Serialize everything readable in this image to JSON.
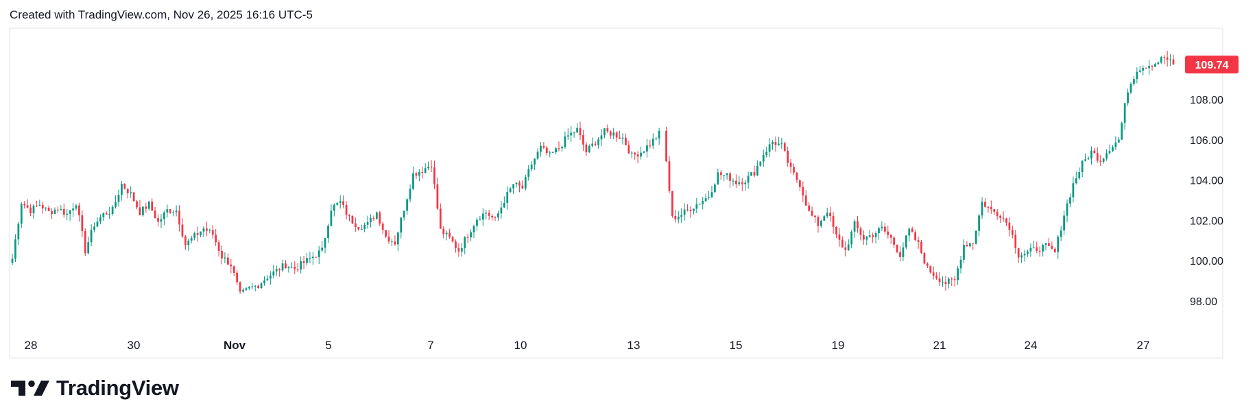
{
  "header": {
    "text": "Created with TradingView.com, Nov 26, 2025 16:16 UTC-5"
  },
  "brand": {
    "name": "TradingView",
    "logo_icon": "tradingview-logo-icon"
  },
  "colors": {
    "up": "#089981",
    "down": "#f23645",
    "text": "#131722",
    "frame": "#e0e3eb"
  },
  "chart_data": {
    "type": "candlestick",
    "title": "",
    "ylim": [
      96.8,
      110.8
    ],
    "y_ticks": [
      98.0,
      100.0,
      102.0,
      104.0,
      106.0,
      108.0
    ],
    "y_tick_labels": [
      "98.00",
      "100.00",
      "102.00",
      "104.00",
      "106.00",
      "108.00"
    ],
    "x_tick_labels": [
      "28",
      "30",
      "Nov",
      "5",
      "7",
      "10",
      "13",
      "15",
      "19",
      "21",
      "24",
      "27"
    ],
    "x_tick_bold": [
      "Nov"
    ],
    "last_price": 109.74,
    "last_price_label": "109.74",
    "series_color_up": "#089981",
    "series_color_down": "#f23645",
    "anchors": [
      100.1,
      102.9,
      102.5,
      102.8,
      102.4,
      102.6,
      102.3,
      102.9,
      100.5,
      101.8,
      102.3,
      102.5,
      103.8,
      103.3,
      102.4,
      102.8,
      101.9,
      102.5,
      102.5,
      100.8,
      101.2,
      101.6,
      101.3,
      100.2,
      99.8,
      98.3,
      98.6,
      98.8,
      99.2,
      99.5,
      99.8,
      99.6,
      99.9,
      100.2,
      100.5,
      102.6,
      102.9,
      102.1,
      101.7,
      101.8,
      102.4,
      101.2,
      100.9,
      102.6,
      104.3,
      104.5,
      104.8,
      101.5,
      101.1,
      100.5,
      101.3,
      102.1,
      102.4,
      102.0,
      103.0,
      103.8,
      103.6,
      104.8,
      105.6,
      105.2,
      105.6,
      106.2,
      106.5,
      105.4,
      105.9,
      106.4,
      106.3,
      106.1,
      105.2,
      105.4,
      105.8,
      106.3,
      102.1,
      102.3,
      102.6,
      102.9,
      103.2,
      104.3,
      104.2,
      103.9,
      104.0,
      104.4,
      105.3,
      105.9,
      105.7,
      104.5,
      103.8,
      102.4,
      101.8,
      102.5,
      101.2,
      100.5,
      101.8,
      101.1,
      101.3,
      101.6,
      101.1,
      100.3,
      101.5,
      100.8,
      99.6,
      99.2,
      98.9,
      99.0,
      100.8,
      100.9,
      102.9,
      102.5,
      102.3,
      101.7,
      100.3,
      100.4,
      100.6,
      100.7,
      100.4,
      102.3,
      103.8,
      104.8,
      105.4,
      105.0,
      105.6,
      106.0,
      108.5,
      109.5,
      109.7,
      109.8,
      110.1,
      109.74
    ]
  }
}
